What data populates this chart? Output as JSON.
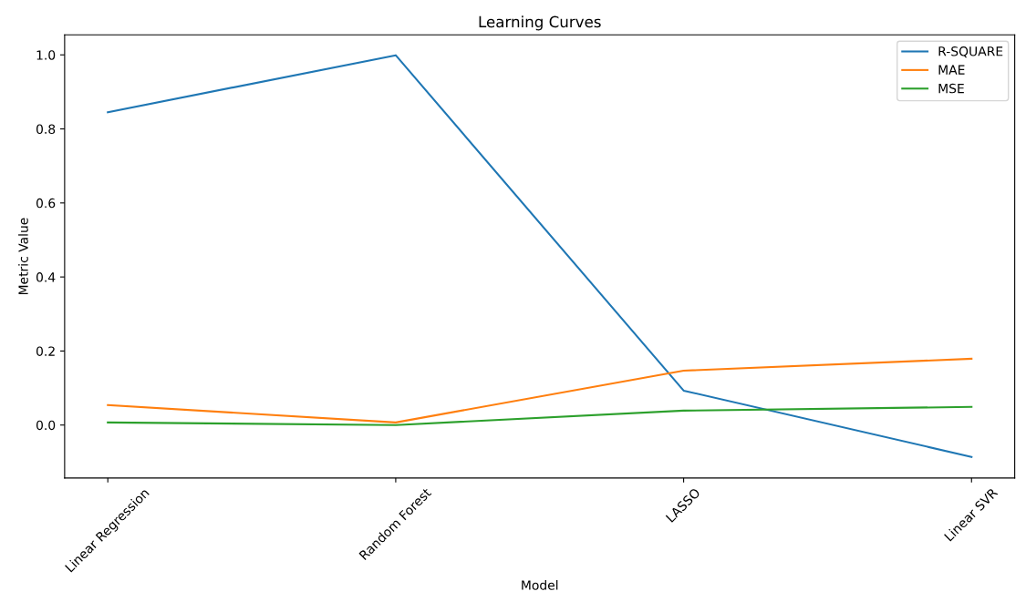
{
  "chart_data": {
    "type": "line",
    "title": "Learning Curves",
    "xlabel": "Model",
    "ylabel": "Metric Value",
    "categories": [
      "Linear Regression",
      "Random Forest",
      "LASSO",
      "Linear SVR"
    ],
    "series": [
      {
        "name": "R-SQUARE",
        "color": "#1f77b4",
        "values": [
          0.845,
          0.999,
          0.093,
          -0.086
        ]
      },
      {
        "name": "MAE",
        "color": "#ff7f0e",
        "values": [
          0.054,
          0.007,
          0.147,
          0.179
        ]
      },
      {
        "name": "MSE",
        "color": "#2ca02c",
        "values": [
          0.007,
          0.0,
          0.039,
          0.049
        ]
      }
    ],
    "ylim": [
      -0.143,
      1.054
    ],
    "yticks": [
      {
        "value": 0,
        "label": "0.0"
      },
      0.2,
      0.4,
      0.6,
      0.8,
      {
        "value": 1,
        "label": "1.0"
      }
    ],
    "legend": "top right",
    "grid": false
  }
}
